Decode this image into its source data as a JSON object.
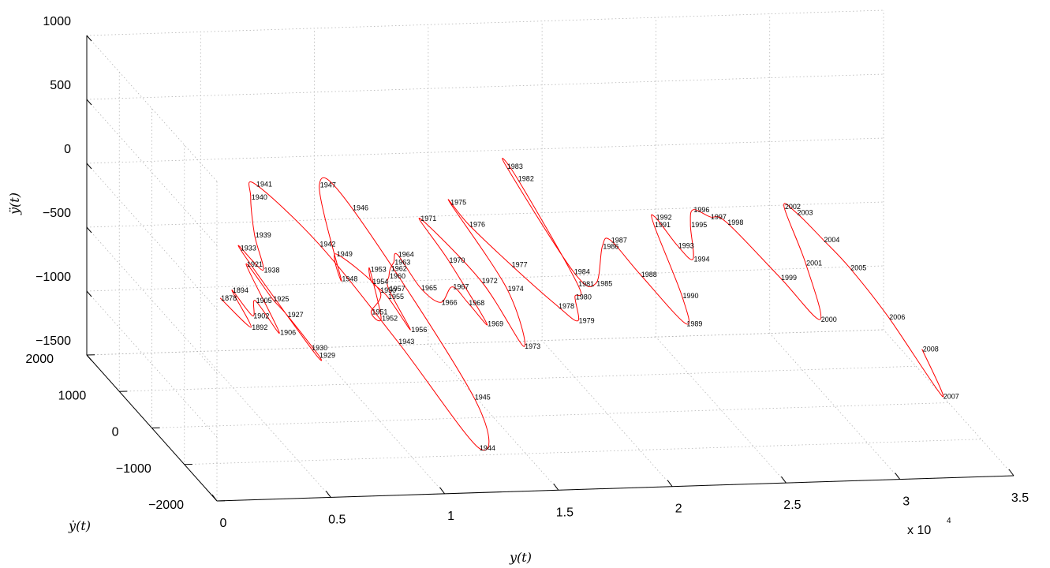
{
  "chart_data": {
    "type": "line3d",
    "xlabel": "y(t)",
    "ylabel": "ẏ(t)",
    "zlabel": "ÿ(t)",
    "x_multiplier": "x 10",
    "x_multiplier_exp": "4",
    "x_ticks": [
      "0",
      "0.5",
      "1",
      "1.5",
      "2",
      "2.5",
      "3",
      "3.5"
    ],
    "y_ticks": [
      "−2000",
      "−1000",
      "0",
      "1000",
      "2000"
    ],
    "z_ticks": [
      "1000",
      "500",
      "0",
      "−500",
      "−1000",
      "−1500"
    ],
    "xlim": [
      0,
      35000
    ],
    "ylim": [
      -2000,
      2000
    ],
    "zlim": [
      -1500,
      1000
    ],
    "grid": true,
    "series_color": "#ff0000",
    "points": [
      {
        "label": "1878",
        "x": 3000,
        "v": 0,
        "z": -500
      },
      {
        "label": "1892",
        "x": 3500,
        "v": -600,
        "z": -560
      },
      {
        "label": "1894",
        "x": 3800,
        "v": 200,
        "z": -500
      },
      {
        "label": "1902",
        "x": 4000,
        "v": -300,
        "z": -560
      },
      {
        "label": "1905",
        "x": 4400,
        "v": -100,
        "z": -500
      },
      {
        "label": "1906",
        "x": 4600,
        "v": -700,
        "z": -580
      },
      {
        "label": "1921",
        "x": 5000,
        "v": 600,
        "z": -420
      },
      {
        "label": "1925",
        "x": 5300,
        "v": 0,
        "z": -520
      },
      {
        "label": "1927",
        "x": 5500,
        "v": -300,
        "z": -560
      },
      {
        "label": "1930",
        "x": 5700,
        "v": -900,
        "z": -650
      },
      {
        "label": "1929",
        "x": 5900,
        "v": -1000,
        "z": -680
      },
      {
        "label": "1933",
        "x": 5000,
        "v": 800,
        "z": -350
      },
      {
        "label": "1938",
        "x": 5600,
        "v": 500,
        "z": -440
      },
      {
        "label": "1939",
        "x": 5800,
        "v": 900,
        "z": -280
      },
      {
        "label": "1940",
        "x": 6200,
        "v": 1300,
        "z": -100
      },
      {
        "label": "1941",
        "x": 6700,
        "v": 1500,
        "z": -60
      },
      {
        "label": "1942",
        "x": 8200,
        "v": 600,
        "z": -280
      },
      {
        "label": "1943",
        "x": 9800,
        "v": -700,
        "z": -680
      },
      {
        "label": "1944",
        "x": 11500,
        "v": -2000,
        "z": -1150
      },
      {
        "label": "1945",
        "x": 12000,
        "v": -1500,
        "z": -900
      },
      {
        "label": "1946",
        "x": 10500,
        "v": 1200,
        "z": -180
      },
      {
        "label": "1947",
        "x": 9500,
        "v": 1500,
        "z": -80
      },
      {
        "label": "1948",
        "x": 8600,
        "v": 200,
        "z": -440
      },
      {
        "label": "1949",
        "x": 8800,
        "v": 500,
        "z": -330
      },
      {
        "label": "1950",
        "x": 10000,
        "v": 0,
        "z": -480
      },
      {
        "label": "1951",
        "x": 9200,
        "v": -300,
        "z": -560
      },
      {
        "label": "1952",
        "x": 9500,
        "v": -400,
        "z": -580
      },
      {
        "label": "1953",
        "x": 10000,
        "v": 300,
        "z": -400
      },
      {
        "label": "1954",
        "x": 9800,
        "v": 100,
        "z": -440
      },
      {
        "label": "1955",
        "x": 10200,
        "v": -100,
        "z": -500
      },
      {
        "label": "1956",
        "x": 10500,
        "v": -600,
        "z": -620
      },
      {
        "label": "1957",
        "x": 10400,
        "v": 0,
        "z": -470
      },
      {
        "label": "1960",
        "x": 10700,
        "v": 200,
        "z": -430
      },
      {
        "label": "1962",
        "x": 10900,
        "v": 300,
        "z": -400
      },
      {
        "label": "1963",
        "x": 11200,
        "v": 400,
        "z": -380
      },
      {
        "label": "1964",
        "x": 11500,
        "v": 500,
        "z": -350
      },
      {
        "label": "1965",
        "x": 11800,
        "v": 0,
        "z": -470
      },
      {
        "label": "1966",
        "x": 12400,
        "v": -200,
        "z": -530
      },
      {
        "label": "1967",
        "x": 13200,
        "v": 0,
        "z": -470
      },
      {
        "label": "1968",
        "x": 13600,
        "v": -200,
        "z": -540
      },
      {
        "label": "1969",
        "x": 14000,
        "v": -500,
        "z": -620
      },
      {
        "label": "1970",
        "x": 13600,
        "v": 400,
        "z": -380
      },
      {
        "label": "1971",
        "x": 13200,
        "v": 1000,
        "z": -220
      },
      {
        "label": "1972",
        "x": 14600,
        "v": 100,
        "z": -460
      },
      {
        "label": "1973",
        "x": 15200,
        "v": -800,
        "z": -720
      },
      {
        "label": "1974",
        "x": 15600,
        "v": 0,
        "z": -500
      },
      {
        "label": "1975",
        "x": 14800,
        "v": 1200,
        "z": -160
      },
      {
        "label": "1976",
        "x": 15200,
        "v": 900,
        "z": -250
      },
      {
        "label": "1977",
        "x": 16200,
        "v": 300,
        "z": -400
      },
      {
        "label": "1978",
        "x": 17400,
        "v": -300,
        "z": -560
      },
      {
        "label": "1979",
        "x": 18000,
        "v": -500,
        "z": -620
      },
      {
        "label": "1980",
        "x": 18300,
        "v": -200,
        "z": -520
      },
      {
        "label": "1981",
        "x": 18700,
        "v": 0,
        "z": -480
      },
      {
        "label": "1982",
        "x": 18200,
        "v": 1500,
        "z": -80
      },
      {
        "label": "1983",
        "x": 18000,
        "v": 1700,
        "z": -40
      },
      {
        "label": "1984",
        "x": 18800,
        "v": 200,
        "z": -440
      },
      {
        "label": "1985",
        "x": 19500,
        "v": 0,
        "z": -480
      },
      {
        "label": "1986",
        "x": 20500,
        "v": 500,
        "z": -340
      },
      {
        "label": "1987",
        "x": 21000,
        "v": 600,
        "z": -320
      },
      {
        "label": "1988",
        "x": 21600,
        "v": 100,
        "z": -450
      },
      {
        "label": "1989",
        "x": 22600,
        "v": -600,
        "z": -640
      },
      {
        "label": "1990",
        "x": 23000,
        "v": -200,
        "z": -540
      },
      {
        "label": "1991",
        "x": 23200,
        "v": 800,
        "z": -270
      },
      {
        "label": "1992",
        "x": 23400,
        "v": 900,
        "z": -240
      },
      {
        "label": "1993",
        "x": 23800,
        "v": 500,
        "z": -350
      },
      {
        "label": "1994",
        "x": 24200,
        "v": 300,
        "z": -400
      },
      {
        "label": "1995",
        "x": 24800,
        "v": 800,
        "z": -280
      },
      {
        "label": "1996",
        "x": 25200,
        "v": 1000,
        "z": -220
      },
      {
        "label": "1997",
        "x": 25800,
        "v": 900,
        "z": -250
      },
      {
        "label": "1998",
        "x": 26400,
        "v": 800,
        "z": -270
      },
      {
        "label": "1999",
        "x": 27600,
        "v": 0,
        "z": -480
      },
      {
        "label": "2000",
        "x": 28500,
        "v": -600,
        "z": -640
      },
      {
        "label": "2001",
        "x": 29000,
        "v": 200,
        "z": -430
      },
      {
        "label": "2002",
        "x": 29200,
        "v": 1000,
        "z": -220
      },
      {
        "label": "2003",
        "x": 29600,
        "v": 900,
        "z": -240
      },
      {
        "label": "2004",
        "x": 30200,
        "v": 500,
        "z": -340
      },
      {
        "label": "2005",
        "x": 30800,
        "v": 100,
        "z": -450
      },
      {
        "label": "2006",
        "x": 31500,
        "v": -600,
        "z": -640
      },
      {
        "label": "2007",
        "x": 32300,
        "v": -1700,
        "z": -950
      },
      {
        "label": "2008",
        "x": 32400,
        "v": -1000,
        "z": -780
      }
    ]
  }
}
